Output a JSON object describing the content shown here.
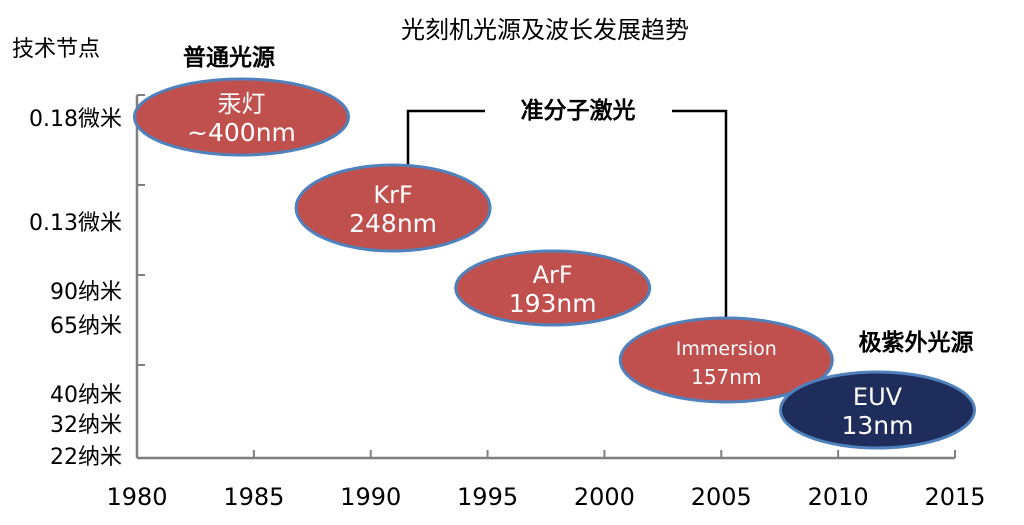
{
  "chart_data": {
    "type": "scatter",
    "title": "光刻机光源及波长发展趋势",
    "ylabel": "技术节点",
    "xlabel": "",
    "x_ticks": [
      "1980",
      "1985",
      "1990",
      "1995",
      "2000",
      "2005",
      "2010",
      "2015"
    ],
    "xlim": [
      1980,
      2015
    ],
    "y_tick_labels": [
      {
        "text": "0.18微米"
      },
      {
        "text": "0.13微米"
      },
      {
        "text": "90纳米"
      },
      {
        "text": "65纳米"
      },
      {
        "text": "40纳米"
      },
      {
        "text": "32纳米"
      },
      {
        "text": "22纳米"
      }
    ],
    "points": [
      {
        "label1": "汞灯",
        "label2": "~400nm",
        "x": 1984,
        "node": "0.18微米",
        "color": "#c0504d"
      },
      {
        "label1": "KrF",
        "label2": "248nm",
        "x": 1991,
        "node": "0.13微米",
        "color": "#c0504d"
      },
      {
        "label1": "ArF",
        "label2": "193nm",
        "x": 1998,
        "node": "90纳米",
        "color": "#c0504d"
      },
      {
        "label1": "Immersion",
        "label2": "157nm",
        "x": 2005,
        "node": "65纳米",
        "color": "#c0504d"
      },
      {
        "label1": "EUV",
        "label2": "13nm",
        "x": 2011,
        "node": "22纳米",
        "color": "#1f2d5c"
      }
    ],
    "annotations": [
      {
        "text": "普通光源"
      },
      {
        "text": "准分子激光"
      },
      {
        "text": "极紫外光源"
      }
    ],
    "grid": false,
    "legend": "none"
  },
  "colors": {
    "ellipse_fill": "#c0504d",
    "ellipse_stroke": "#4f81bd",
    "euv_fill": "#1f2d5c",
    "axis": "#7f7f7f"
  }
}
